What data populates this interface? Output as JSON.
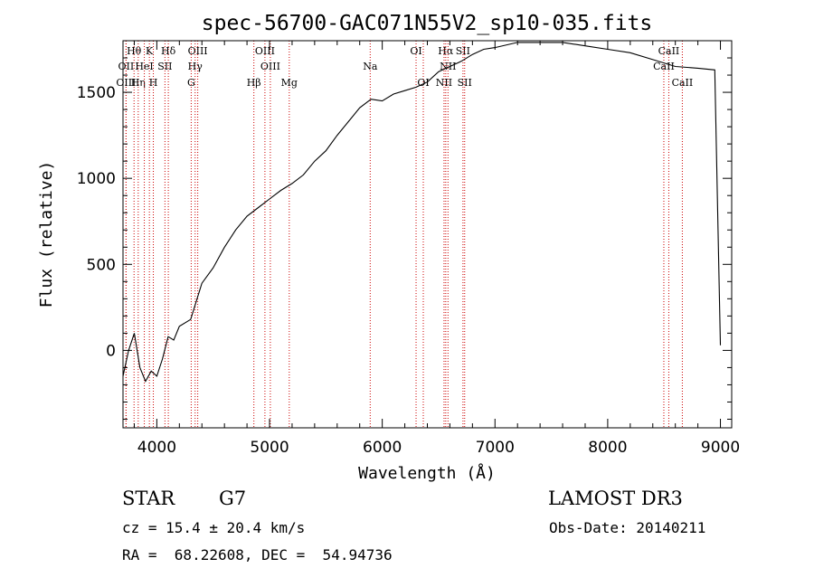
{
  "chart_data": {
    "type": "line",
    "title": "spec-56700-GAC071N55V2_sp10-035.fits",
    "xlabel": "Wavelength (Å)",
    "ylabel": "Flux (relative)",
    "xlim": [
      3700,
      9100
    ],
    "ylim": [
      -450,
      1800
    ],
    "x_ticks": [
      4000,
      5000,
      6000,
      7000,
      8000,
      9000
    ],
    "x_tick_labels": [
      "4000",
      "5000",
      "6000",
      "7000",
      "8000",
      "9000"
    ],
    "y_ticks": [
      0,
      500,
      1000,
      1500
    ],
    "y_tick_labels": [
      "0",
      "500",
      "1000",
      "1500"
    ],
    "series": [
      {
        "name": "spectrum",
        "x": [
          3700,
          3750,
          3800,
          3850,
          3900,
          3950,
          4000,
          4050,
          4100,
          4150,
          4200,
          4300,
          4400,
          4500,
          4600,
          4700,
          4800,
          4900,
          5000,
          5100,
          5200,
          5300,
          5400,
          5500,
          5600,
          5700,
          5800,
          5900,
          6000,
          6100,
          6200,
          6300,
          6400,
          6500,
          6600,
          6700,
          6800,
          6900,
          7000,
          7200,
          7400,
          7600,
          7800,
          8000,
          8200,
          8400,
          8600,
          8800,
          8950,
          9000
        ],
        "y": [
          -150,
          0,
          100,
          -100,
          -180,
          -120,
          -150,
          -50,
          80,
          60,
          140,
          180,
          390,
          480,
          600,
          700,
          780,
          830,
          880,
          930,
          970,
          1020,
          1100,
          1160,
          1250,
          1330,
          1410,
          1460,
          1450,
          1490,
          1510,
          1530,
          1560,
          1620,
          1650,
          1680,
          1720,
          1750,
          1760,
          1790,
          1790,
          1790,
          1770,
          1750,
          1730,
          1690,
          1650,
          1640,
          1630,
          30
        ]
      }
    ],
    "line_markers": [
      {
        "label": "Hθ",
        "wavelength": 3798,
        "row": 1
      },
      {
        "label": "OII",
        "wavelength": 3727,
        "row": 2
      },
      {
        "label": "OIII",
        "wavelength": 3727,
        "row": 3
      },
      {
        "label": "Hη",
        "wavelength": 3835,
        "row": 3
      },
      {
        "label": "K",
        "wavelength": 3934,
        "row": 1
      },
      {
        "label": "HeI",
        "wavelength": 3889,
        "row": 2
      },
      {
        "label": "H",
        "wavelength": 3969,
        "row": 3
      },
      {
        "label": "Hδ",
        "wavelength": 4102,
        "row": 1
      },
      {
        "label": "SII",
        "wavelength": 4072,
        "row": 2
      },
      {
        "label": "OIII",
        "wavelength": 4363,
        "row": 1
      },
      {
        "label": "Hγ",
        "wavelength": 4340,
        "row": 2
      },
      {
        "label": "G",
        "wavelength": 4305,
        "row": 3
      },
      {
        "label": "Hβ",
        "wavelength": 4861,
        "row": 3
      },
      {
        "label": "OIII",
        "wavelength": 4959,
        "row": 1
      },
      {
        "label": "OIII",
        "wavelength": 5007,
        "row": 2
      },
      {
        "label": "Mg",
        "wavelength": 5175,
        "row": 3
      },
      {
        "label": "Na",
        "wavelength": 5893,
        "row": 2
      },
      {
        "label": "OI",
        "wavelength": 6300,
        "row": 1
      },
      {
        "label": "OI",
        "wavelength": 6364,
        "row": 3
      },
      {
        "label": "Hα",
        "wavelength": 6563,
        "row": 1
      },
      {
        "label": "SII",
        "wavelength": 6716,
        "row": 1
      },
      {
        "label": "NII",
        "wavelength": 6583,
        "row": 2
      },
      {
        "label": "NII",
        "wavelength": 6548,
        "row": 3
      },
      {
        "label": "SII",
        "wavelength": 6731,
        "row": 3
      },
      {
        "label": "CaII",
        "wavelength": 8542,
        "row": 1
      },
      {
        "label": "CaII",
        "wavelength": 8498,
        "row": 2
      },
      {
        "label": "CaII",
        "wavelength": 8662,
        "row": 3
      }
    ],
    "grid": false,
    "legend": "none"
  },
  "info": {
    "object_class": "STAR",
    "subclass": "G7",
    "survey": "LAMOST DR3",
    "redshift": "cz = 15.4 ± 20.4 km/s",
    "obs_date": "Obs-Date: 20140211",
    "coords": "RA =  68.22608, DEC =  54.94736"
  },
  "colors": {
    "line": "#000000",
    "marker": "#cc0000"
  }
}
